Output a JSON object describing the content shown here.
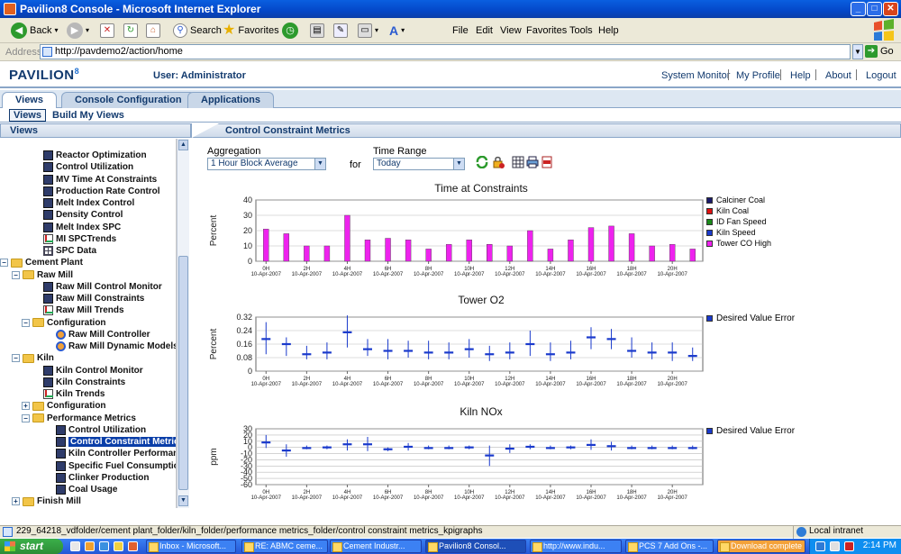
{
  "window": {
    "title": "Pavilion8 Console - Microsoft Internet Explorer"
  },
  "toolbar": {
    "back": "Back",
    "search": "Search",
    "favorites": "Favorites",
    "menu": [
      "File",
      "Edit",
      "View",
      "Favorites",
      "Tools",
      "Help"
    ]
  },
  "address": {
    "label": "Address",
    "url": "http://pavdemo2/action/home",
    "go": "Go"
  },
  "header": {
    "logo": "PAVILION",
    "logo_sup": "8",
    "user": "User: Administrator",
    "links": [
      "System Monitor",
      "My Profile",
      "Help",
      "About",
      "Logout"
    ]
  },
  "tabs": [
    "Views",
    "Console Configuration",
    "Applications"
  ],
  "subtabs": [
    "Views",
    "Build My Views"
  ],
  "left_title": "Views",
  "right_title": "Control Constraint Metrics",
  "tree": [
    {
      "label": "Reactor Optimization",
      "icon": "report"
    },
    {
      "label": "Control Utilization",
      "icon": "report"
    },
    {
      "label": "MV Time At Constraints",
      "icon": "report"
    },
    {
      "label": "Production Rate Control",
      "icon": "report"
    },
    {
      "label": "Melt Index Control",
      "icon": "report"
    },
    {
      "label": "Density Control",
      "icon": "report"
    },
    {
      "label": "Melt Index SPC",
      "icon": "report"
    },
    {
      "label": "MI SPCTrends",
      "icon": "chart"
    },
    {
      "label": "SPC Data",
      "icon": "table"
    },
    {
      "label": "Cement Plant",
      "icon": "folder"
    },
    {
      "label": "Raw Mill",
      "icon": "folder"
    },
    {
      "label": "Raw Mill Control Monitor",
      "icon": "report"
    },
    {
      "label": "Raw Mill Constraints",
      "icon": "report"
    },
    {
      "label": "Raw Mill Trends",
      "icon": "chart"
    },
    {
      "label": "Configuration",
      "icon": "folder"
    },
    {
      "label": "Raw Mill Controller",
      "icon": "config"
    },
    {
      "label": "Raw Mill Dynamic Models",
      "icon": "config"
    },
    {
      "label": "Kiln",
      "icon": "folder"
    },
    {
      "label": "Kiln Control Monitor",
      "icon": "report"
    },
    {
      "label": "Kiln Constraints",
      "icon": "report"
    },
    {
      "label": "Kiln Trends",
      "icon": "chart"
    },
    {
      "label": "Configuration",
      "icon": "folder"
    },
    {
      "label": "Performance Metrics",
      "icon": "folder"
    },
    {
      "label": "Control Utilization",
      "icon": "report"
    },
    {
      "label": "Control Constraint Metrics",
      "icon": "report"
    },
    {
      "label": "Kiln Controller Performance",
      "icon": "report"
    },
    {
      "label": "Specific Fuel Consumption",
      "icon": "report"
    },
    {
      "label": "Clinker Production",
      "icon": "report"
    },
    {
      "label": "Coal Usage",
      "icon": "report"
    },
    {
      "label": "Finish Mill",
      "icon": "folder"
    }
  ],
  "filters": {
    "aggregation_label": "Aggregation",
    "aggregation_value": "1 Hour Block Average",
    "for_label": "for",
    "time_range_label": "Time Range",
    "time_range_value": "Today"
  },
  "x_ticks": [
    {
      "hour": "0H",
      "date": "10-Apr-2007"
    },
    {
      "hour": "2H",
      "date": "10-Apr-2007"
    },
    {
      "hour": "4H",
      "date": "10-Apr-2007"
    },
    {
      "hour": "6H",
      "date": "10-Apr-2007"
    },
    {
      "hour": "8H",
      "date": "10-Apr-2007"
    },
    {
      "hour": "10H",
      "date": "10-Apr-2007"
    },
    {
      "hour": "12H",
      "date": "10-Apr-2007"
    },
    {
      "hour": "14H",
      "date": "10-Apr-2007"
    },
    {
      "hour": "16H",
      "date": "10-Apr-2007"
    },
    {
      "hour": "18H",
      "date": "10-Apr-2007"
    },
    {
      "hour": "20H",
      "date": "10-Apr-2007"
    }
  ],
  "chart_data": [
    {
      "type": "bar",
      "title": "Time at Constraints",
      "ylabel": "Percent",
      "ylim": [
        0,
        40
      ],
      "yticks": [
        0,
        10,
        20,
        30,
        40
      ],
      "grid": true,
      "legend_position": "right",
      "x_hours": [
        0,
        1,
        2,
        3,
        4,
        5,
        6,
        7,
        8,
        9,
        10,
        11,
        12,
        13,
        14,
        15,
        16,
        17,
        18,
        19,
        20,
        21
      ],
      "series": [
        {
          "name": "Calciner Coal",
          "color": "#1a1a6a",
          "values": [
            0,
            0,
            0,
            0,
            0,
            0,
            0,
            0,
            0,
            0,
            0,
            0,
            0,
            0,
            0,
            0,
            0,
            0,
            0,
            0,
            0,
            0
          ]
        },
        {
          "name": "Kiln Coal",
          "color": "#e01010",
          "values": [
            0,
            0,
            0,
            0,
            0,
            0,
            0,
            0,
            0,
            0,
            0,
            11,
            0,
            0,
            0,
            0,
            0,
            0,
            0,
            0,
            0,
            0
          ]
        },
        {
          "name": "ID Fan Speed",
          "color": "#1a8a1a",
          "values": [
            0,
            0,
            0,
            0,
            0,
            0,
            0,
            0,
            0,
            0,
            0,
            0,
            0,
            0,
            0,
            0,
            0,
            0,
            0,
            0,
            0,
            0
          ]
        },
        {
          "name": "Kiln Speed",
          "color": "#1a3acc",
          "values": [
            0,
            0,
            0,
            0,
            0,
            0,
            0,
            0,
            0,
            0,
            0,
            0,
            0,
            0,
            0,
            0,
            0,
            0,
            0,
            0,
            0,
            0
          ]
        },
        {
          "name": "Tower CO High",
          "color": "#ee22ee",
          "values": [
            21,
            18,
            10,
            10,
            30,
            14,
            15,
            14,
            8,
            11,
            14,
            11,
            10,
            20,
            8,
            14,
            22,
            23,
            18,
            10,
            11,
            8
          ]
        }
      ]
    },
    {
      "type": "scatter",
      "title": "Tower O2",
      "ylabel": "Percent",
      "ylim": [
        0,
        0.32
      ],
      "yticks": [
        0,
        0.08,
        0.16,
        0.24,
        0.32
      ],
      "ytick_labels": [
        "0",
        "0.08",
        "0.16",
        "0.24",
        "0.32"
      ],
      "grid": true,
      "legend_position": "right",
      "series": [
        {
          "name": "Desired Value Error",
          "color": "#1a3acc",
          "x_hours": [
            0,
            1,
            2,
            3,
            4,
            5,
            6,
            7,
            8,
            9,
            10,
            11,
            12,
            13,
            14,
            15,
            16,
            17,
            18,
            19,
            20,
            21
          ],
          "values": [
            0.19,
            0.16,
            0.1,
            0.11,
            0.23,
            0.13,
            0.12,
            0.12,
            0.11,
            0.11,
            0.13,
            0.1,
            0.11,
            0.16,
            0.1,
            0.11,
            0.2,
            0.19,
            0.12,
            0.11,
            0.11,
            0.09
          ],
          "low": [
            0.1,
            0.09,
            0.07,
            0.07,
            0.14,
            0.09,
            0.07,
            0.08,
            0.07,
            0.07,
            0.08,
            0.06,
            0.07,
            0.09,
            0.06,
            0.07,
            0.13,
            0.13,
            0.08,
            0.07,
            0.06,
            0.06
          ],
          "high": [
            0.29,
            0.2,
            0.15,
            0.17,
            0.33,
            0.19,
            0.19,
            0.18,
            0.18,
            0.17,
            0.19,
            0.15,
            0.17,
            0.24,
            0.17,
            0.18,
            0.26,
            0.25,
            0.2,
            0.17,
            0.17,
            0.14
          ]
        }
      ]
    },
    {
      "type": "scatter",
      "title": "Kiln NOx",
      "ylabel": "ppm",
      "ylim": [
        -60,
        30
      ],
      "yticks": [
        -60,
        -50,
        -40,
        -30,
        -20,
        -10,
        0,
        10,
        20,
        30
      ],
      "grid": true,
      "legend_position": "right",
      "series": [
        {
          "name": "Desired Value Error",
          "color": "#1a3acc",
          "x_hours": [
            0,
            1,
            2,
            3,
            4,
            5,
            6,
            7,
            8,
            9,
            10,
            11,
            12,
            13,
            14,
            15,
            16,
            17,
            18,
            19,
            20,
            21
          ],
          "values": [
            8,
            -5,
            -1,
            0,
            5,
            5,
            -3,
            1,
            -1,
            -1,
            0,
            -13,
            -2,
            1,
            -1,
            0,
            4,
            2,
            -1,
            -1,
            -1,
            -1
          ],
          "low": [
            -1,
            -15,
            -3,
            -3,
            -5,
            -6,
            -6,
            -5,
            -3,
            -3,
            -3,
            -30,
            -9,
            -3,
            -3,
            -3,
            -4,
            -5,
            -3,
            -3,
            -3,
            -3
          ],
          "high": [
            20,
            5,
            3,
            3,
            13,
            17,
            0,
            7,
            3,
            3,
            3,
            3,
            5,
            5,
            3,
            3,
            13,
            9,
            3,
            3,
            3,
            3
          ]
        }
      ]
    }
  ],
  "status": {
    "path": "229_64218_vdfolder/cement plant_folder/kiln_folder/performance metrics_folder/control constraint metrics_kpigraphs",
    "zone": "Local intranet"
  },
  "taskbar": {
    "start": "start",
    "tasks": [
      "Inbox - Microsoft...",
      "RE: ABMC ceme...",
      "Cement Industr...",
      "Pavilion8 Consol...",
      "http://www.indu...",
      "PCS 7 Add Ons -...",
      "Download complete"
    ],
    "clock": "2:14 PM"
  }
}
